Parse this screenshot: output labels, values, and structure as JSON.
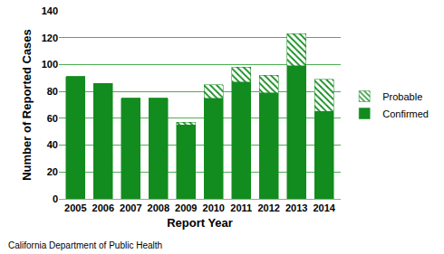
{
  "chart_data": {
    "type": "bar",
    "x_label": "Report Year",
    "y_label": "Number of Reported Cases",
    "annotations": [
      "California Department of Public Health"
    ],
    "categories": [
      "2005",
      "2006",
      "2007",
      "2008",
      "2009",
      "2010",
      "2011",
      "2012",
      "2013",
      "2014"
    ],
    "series": [
      {
        "name": "Confirmed",
        "color": "#128c1e",
        "values": [
          91,
          86,
          75,
          75,
          55,
          75,
          87,
          79,
          99,
          65
        ]
      },
      {
        "name": "Probable",
        "color": "#128c1e",
        "marker": "hatch",
        "values": [
          0,
          0,
          0,
          0,
          2,
          10,
          11,
          13,
          24,
          24
        ]
      }
    ],
    "stacked": true,
    "ylim": [
      0,
      140
    ],
    "yticks": [
      0,
      20,
      40,
      60,
      80,
      100,
      120,
      140
    ],
    "grid": true,
    "legend": "right"
  }
}
